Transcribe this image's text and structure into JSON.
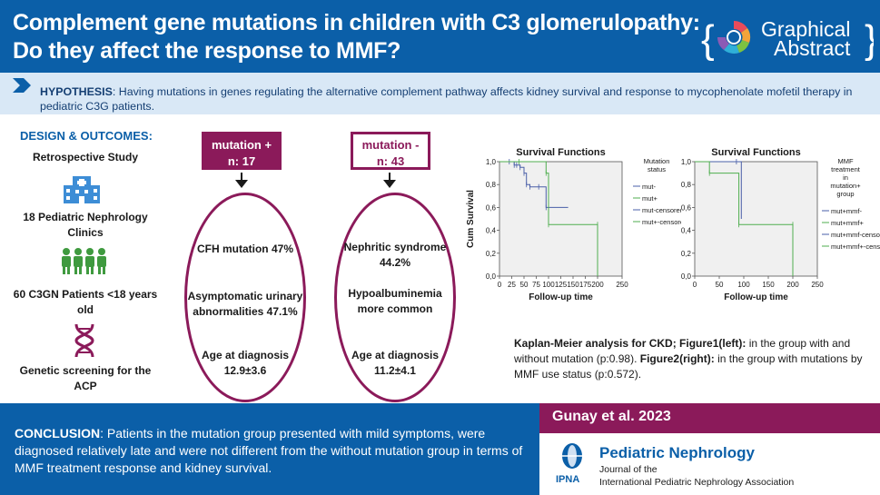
{
  "header": {
    "title_line1": "Complement gene mutations in children with C3 glomerulopathy:",
    "title_line2": "Do they affect the response to MMF?",
    "badge_line1": "Graphical",
    "badge_line2": "Abstract"
  },
  "hypothesis": {
    "label": "HYPOTHESIS",
    "text": ": Having mutations in genes regulating the alternative complement pathway affects kidney survival and response to mycophenolate mofetil therapy in pediatric C3G patients."
  },
  "design": {
    "title": "DESIGN & OUTCOMES:",
    "items": [
      {
        "label": "Retrospective Study",
        "icon": "hospital-icon"
      },
      {
        "label": "18 Pediatric Nephrology Clinics",
        "icon": "people-icon"
      },
      {
        "label": "60 C3GN Patients <18 years old",
        "icon": "dna-icon"
      },
      {
        "label": "Genetic screening for the ACP",
        "icon": ""
      }
    ]
  },
  "groups": {
    "pos": {
      "line1": "mutation +",
      "line2": "n: 17",
      "finding1": "CFH mutation 47%",
      "finding2": "Asymptomatic urinary abnormalities 47.1%",
      "finding3": "Age at diagnosis",
      "finding3b": "12.9±3.6"
    },
    "neg": {
      "line1": "mutation -",
      "line2": "n: 43",
      "finding1": "Nephritic syndrome",
      "finding1b": "44.2%",
      "finding2": "Hypoalbuminemia more common",
      "finding3": "Age at diagnosis",
      "finding3b": "11.2±4.1"
    }
  },
  "chart_data": [
    {
      "type": "line",
      "title": "Survival Functions",
      "xlabel": "Follow-up time",
      "ylabel": "Cum Survival",
      "xlim": [
        0,
        250
      ],
      "ylim": [
        0,
        1.0
      ],
      "xticks": [
        "0",
        "25",
        "50",
        "75",
        "100",
        "125",
        "150",
        "175",
        "200",
        "250"
      ],
      "yticks": [
        "0,0",
        "0,2",
        "0,4",
        "0,6",
        "0,8",
        "1,0"
      ],
      "legend_title": "Mutation status",
      "legend": [
        "mut-",
        "mut+",
        "mut-censored",
        "mut+-censored"
      ],
      "series": [
        {
          "name": "mut-",
          "color": "#4a5fa8",
          "x": [
            0,
            20,
            30,
            35,
            42,
            50,
            55,
            62,
            80,
            95,
            140
          ],
          "y": [
            1.0,
            1.0,
            0.97,
            0.97,
            0.95,
            0.9,
            0.8,
            0.78,
            0.78,
            0.6,
            0.6
          ]
        },
        {
          "name": "mut+",
          "color": "#4fae4f",
          "x": [
            0,
            40,
            95,
            100,
            200,
            200
          ],
          "y": [
            1.0,
            1.0,
            0.9,
            0.45,
            0.45,
            0.0
          ]
        }
      ]
    },
    {
      "type": "line",
      "title": "Survival Functions",
      "xlabel": "Follow-up time",
      "ylabel": "",
      "xlim": [
        0,
        250
      ],
      "ylim": [
        0,
        1.0
      ],
      "xticks": [
        "0",
        "50",
        "100",
        "150",
        "200",
        "250"
      ],
      "yticks": [
        "0,0",
        "0,2",
        "0,4",
        "0,6",
        "0,8",
        "1,0"
      ],
      "legend_title": "MMF treatment in mutation+ group",
      "legend": [
        "mut+mmf-",
        "mut+mmf+",
        "mut+mmf-censored",
        "mut+mmf+-censored"
      ],
      "series": [
        {
          "name": "mut+mmf-",
          "color": "#4a5fa8",
          "x": [
            0,
            85,
            95
          ],
          "y": [
            1.0,
            1.0,
            0.5
          ]
        },
        {
          "name": "mut+mmf+",
          "color": "#4fae4f",
          "x": [
            0,
            30,
            90,
            200,
            200
          ],
          "y": [
            1.0,
            0.9,
            0.45,
            0.45,
            0.0
          ]
        }
      ]
    }
  ],
  "km_caption": {
    "b1": "Kaplan-Meier analysis for CKD; Figure1(left):",
    "t1": " in the group with and without mutation (p:0.98). ",
    "b2": "Figure2(right):",
    "t2": " in the group with mutations by MMF use status (p:0.572)."
  },
  "conclusion": {
    "label": "CONCLUSION",
    "text": ": Patients in the mutation group presented with mild symptoms, were diagnosed relatively late and were not different from the without mutation group in terms of MMF treatment response and kidney survival."
  },
  "citation": {
    "author": "Gunay et al. 2023"
  },
  "journal": {
    "name": "Pediatric Nephrology",
    "line1": "Journal of the",
    "line2": "International Pediatric Nephrology Association",
    "logo_text": "IPNA"
  },
  "colors": {
    "blue": "#0b5fa8",
    "purple": "#8b1a5a",
    "light_blue": "#d9e8f6",
    "green": "#3f9a3f"
  }
}
